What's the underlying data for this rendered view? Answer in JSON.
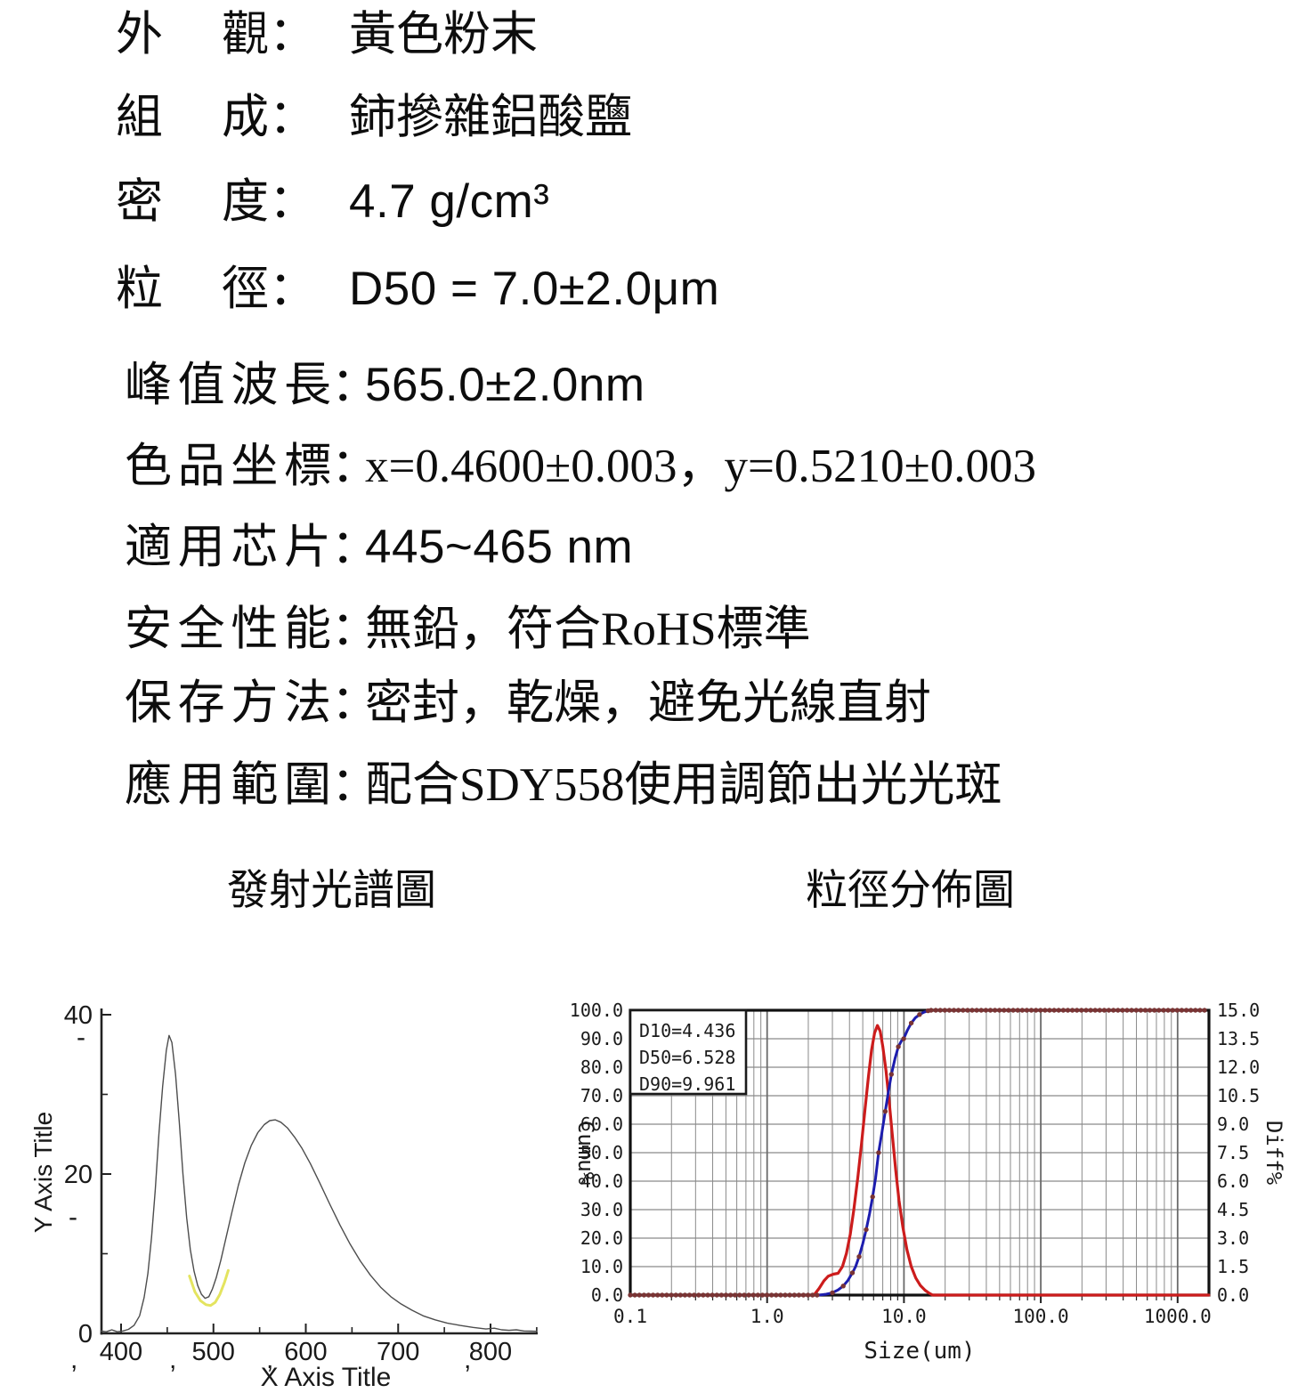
{
  "document": {
    "colon": "：",
    "specs": [
      {
        "label": "外觀",
        "value": "黃色粉末"
      },
      {
        "label": "組成",
        "value": "鈰摻雜鋁酸鹽"
      },
      {
        "label": "密度",
        "value": "4.7 g/cm³"
      },
      {
        "label": "粒徑",
        "value": "D50 = 7.0±2.0μm"
      },
      {
        "label": "峰值波長",
        "value": "565.0±2.0nm"
      },
      {
        "label": "色品坐標",
        "value": "x=0.4600±0.003，y=0.5210±0.003"
      },
      {
        "label": "適用芯片",
        "value": "445~465 nm"
      },
      {
        "label": "安全性能",
        "value": "無鉛，符合RoHS標準"
      },
      {
        "label": "保存方法",
        "value": "密封，乾燥，避免光線直射"
      },
      {
        "label": "應用範圍",
        "value": "配合SDY558使用調節出光光斑"
      }
    ],
    "chart_titles": {
      "left": "發射光譜圖",
      "right": "粒徑分佈圖"
    }
  },
  "chart_data": [
    {
      "type": "line",
      "title": "發射光譜圖",
      "xlabel": "X Axis Title",
      "ylabel": "Y Axis Title",
      "xlim": [
        378,
        852
      ],
      "ylim": [
        0,
        40
      ],
      "grid": false,
      "x_major_ticks": [
        400,
        500,
        600,
        700,
        800
      ],
      "x_minor_ticks": [
        450,
        550,
        650,
        750,
        850
      ],
      "y_major_ticks": [
        0,
        20,
        40
      ],
      "y_minor_ticks": [
        10,
        30
      ],
      "series": [
        {
          "name": "emission-spectrum",
          "color": "#4d4d4d",
          "width": 1.4,
          "points": [
            [
              378,
              0.3
            ],
            [
              384,
              0.2
            ],
            [
              390,
              0.45
            ],
            [
              396,
              0.2
            ],
            [
              402,
              0.3
            ],
            [
              408,
              0.5
            ],
            [
              414,
              1.0
            ],
            [
              420,
              2.2
            ],
            [
              425,
              4.5
            ],
            [
              429,
              7.5
            ],
            [
              433,
              12
            ],
            [
              437,
              18
            ],
            [
              441,
              25
            ],
            [
              445,
              31
            ],
            [
              449,
              35.5
            ],
            [
              452,
              37.4
            ],
            [
              455,
              36.5
            ],
            [
              459,
              32.5
            ],
            [
              463,
              26.5
            ],
            [
              467,
              20
            ],
            [
              471,
              14.5
            ],
            [
              475,
              10.5
            ],
            [
              479,
              7.8
            ],
            [
              483,
              6.0
            ],
            [
              487,
              4.9
            ],
            [
              491,
              4.4
            ],
            [
              495,
              4.6
            ],
            [
              499,
              5.6
            ],
            [
              503,
              7.0
            ],
            [
              508,
              9.2
            ],
            [
              514,
              12.2
            ],
            [
              520,
              15.2
            ],
            [
              527,
              18.6
            ],
            [
              534,
              21.4
            ],
            [
              541,
              23.6
            ],
            [
              548,
              25.2
            ],
            [
              555,
              26.2
            ],
            [
              561,
              26.7
            ],
            [
              567,
              26.8
            ],
            [
              573,
              26.5
            ],
            [
              580,
              25.8
            ],
            [
              588,
              24.6
            ],
            [
              596,
              23.2
            ],
            [
              605,
              21.3
            ],
            [
              615,
              18.9
            ],
            [
              626,
              16.2
            ],
            [
              637,
              13.6
            ],
            [
              648,
              11.2
            ],
            [
              659,
              9.1
            ],
            [
              670,
              7.3
            ],
            [
              681,
              5.8
            ],
            [
              692,
              4.6
            ],
            [
              703,
              3.7
            ],
            [
              715,
              2.9
            ],
            [
              727,
              2.2
            ],
            [
              740,
              1.7
            ],
            [
              753,
              1.3
            ],
            [
              767,
              1.0
            ],
            [
              781,
              0.75
            ],
            [
              795,
              0.55
            ],
            [
              804,
              0.65
            ],
            [
              812,
              0.45
            ],
            [
              820,
              0.38
            ],
            [
              828,
              0.45
            ],
            [
              836,
              0.3
            ],
            [
              844,
              0.28
            ],
            [
              850,
              0.26
            ]
          ]
        },
        {
          "name": "valley-overlay",
          "color": "#e4e45f",
          "width": 3,
          "points": [
            [
              474,
              7.2
            ],
            [
              480,
              5.2
            ],
            [
              486,
              4.1
            ],
            [
              492,
              3.6
            ],
            [
              497,
              3.5
            ],
            [
              502,
              3.9
            ],
            [
              507,
              4.9
            ],
            [
              512,
              6.4
            ],
            [
              516,
              7.9
            ]
          ]
        }
      ],
      "stray_marks": [
        {
          "glyph": ",",
          "x": 59,
          "y": 432
        },
        {
          "glyph": ",",
          "x": 170,
          "y": 432
        },
        {
          "glyph": ",",
          "x": 279,
          "y": 432
        },
        {
          "glyph": ",",
          "x": 501,
          "y": 432
        },
        {
          "glyph": "-",
          "x": 66,
          "y": 70
        },
        {
          "glyph": "-",
          "x": 57,
          "y": 272
        }
      ]
    },
    {
      "type": "line",
      "title": "粒徑分佈圖",
      "xlabel": "Size(um)",
      "ylabel_left": "Cumu%",
      "ylabel_right": "Diff%",
      "x_scale": "log",
      "xlim": [
        0.1,
        1694
      ],
      "ylim_left": [
        0,
        100
      ],
      "ylim_right": [
        0,
        15
      ],
      "grid": true,
      "x_tick_labels": [
        {
          "v": 0.1,
          "label": "0.1"
        },
        {
          "v": 1,
          "label": "1.0"
        },
        {
          "v": 10,
          "label": "10.0"
        },
        {
          "v": 100,
          "label": "100.0"
        },
        {
          "v": 1000,
          "label": "1000.0"
        }
      ],
      "left_tick_labels": [
        "0.0",
        "10.0",
        "20.0",
        "30.0",
        "40.0",
        "50.0",
        "60.0",
        "70.0",
        "80.0",
        "90.0",
        "100.0"
      ],
      "right_tick_labels": [
        "0.0",
        "1.5",
        "3.0",
        "4.5",
        "6.0",
        "7.5",
        "9.0",
        "10.5",
        "12.0",
        "13.5",
        "15.0"
      ],
      "legend": [
        "D10=4.436",
        "D50=6.528",
        "D90=9.961"
      ],
      "series": [
        {
          "name": "cumulative",
          "axis": "left",
          "color": "#1d1dae",
          "width": 3,
          "points": [
            [
              2.4,
              0
            ],
            [
              2.7,
              0.3
            ],
            [
              3.0,
              0.8
            ],
            [
              3.3,
              1.8
            ],
            [
              3.6,
              3.2
            ],
            [
              3.9,
              5.2
            ],
            [
              4.2,
              7.8
            ],
            [
              4.436,
              10
            ],
            [
              4.7,
              13.5
            ],
            [
              5.0,
              18
            ],
            [
              5.3,
              23
            ],
            [
              5.6,
              28.5
            ],
            [
              5.9,
              34.5
            ],
            [
              6.2,
              41
            ],
            [
              6.528,
              50
            ],
            [
              6.9,
              57
            ],
            [
              7.3,
              64.5
            ],
            [
              7.7,
              71.5
            ],
            [
              8.1,
              77.5
            ],
            [
              8.6,
              83
            ],
            [
              9.1,
              87.2
            ],
            [
              9.6,
              89.3
            ],
            [
              9.961,
              90
            ],
            [
              10.6,
              93
            ],
            [
              11.3,
              95.5
            ],
            [
              12.1,
              97.3
            ],
            [
              13.0,
              98.5
            ],
            [
              14.0,
              99.3
            ],
            [
              15.0,
              99.8
            ],
            [
              16.0,
              100
            ]
          ]
        },
        {
          "name": "differential",
          "axis": "right",
          "color": "#cc1c1c",
          "width": 3.2,
          "points": [
            [
              2.2,
              0
            ],
            [
              2.4,
              0.35
            ],
            [
              2.6,
              0.75
            ],
            [
              2.8,
              1.0
            ],
            [
              3.05,
              1.1
            ],
            [
              3.3,
              1.15
            ],
            [
              3.55,
              1.5
            ],
            [
              3.8,
              2.2
            ],
            [
              4.05,
              3.2
            ],
            [
              4.3,
              4.5
            ],
            [
              4.6,
              6.2
            ],
            [
              4.9,
              8.0
            ],
            [
              5.2,
              9.8
            ],
            [
              5.5,
              11.5
            ],
            [
              5.8,
              12.9
            ],
            [
              6.1,
              13.8
            ],
            [
              6.4,
              14.2
            ],
            [
              6.7,
              13.9
            ],
            [
              7.0,
              13.1
            ],
            [
              7.4,
              11.8
            ],
            [
              7.8,
              10.2
            ],
            [
              8.2,
              8.5
            ],
            [
              8.7,
              6.6
            ],
            [
              9.2,
              5.0
            ],
            [
              9.8,
              3.6
            ],
            [
              10.5,
              2.4
            ],
            [
              11.3,
              1.5
            ],
            [
              12.2,
              0.9
            ],
            [
              13.2,
              0.5
            ],
            [
              14.3,
              0.25
            ],
            [
              15.3,
              0.1
            ],
            [
              16.2,
              0
            ],
            [
              20,
              0
            ],
            [
              40,
              0
            ],
            [
              80,
              0
            ],
            [
              160,
              0
            ],
            [
              320,
              0
            ],
            [
              640,
              0
            ],
            [
              1000,
              0
            ],
            [
              1690,
              0
            ]
          ]
        }
      ],
      "markers": {
        "color": "#7a3434",
        "radius": 2.7,
        "baseline_to": 2.45,
        "top_from": 15.8,
        "step_decades": 0.0333
      }
    }
  ]
}
